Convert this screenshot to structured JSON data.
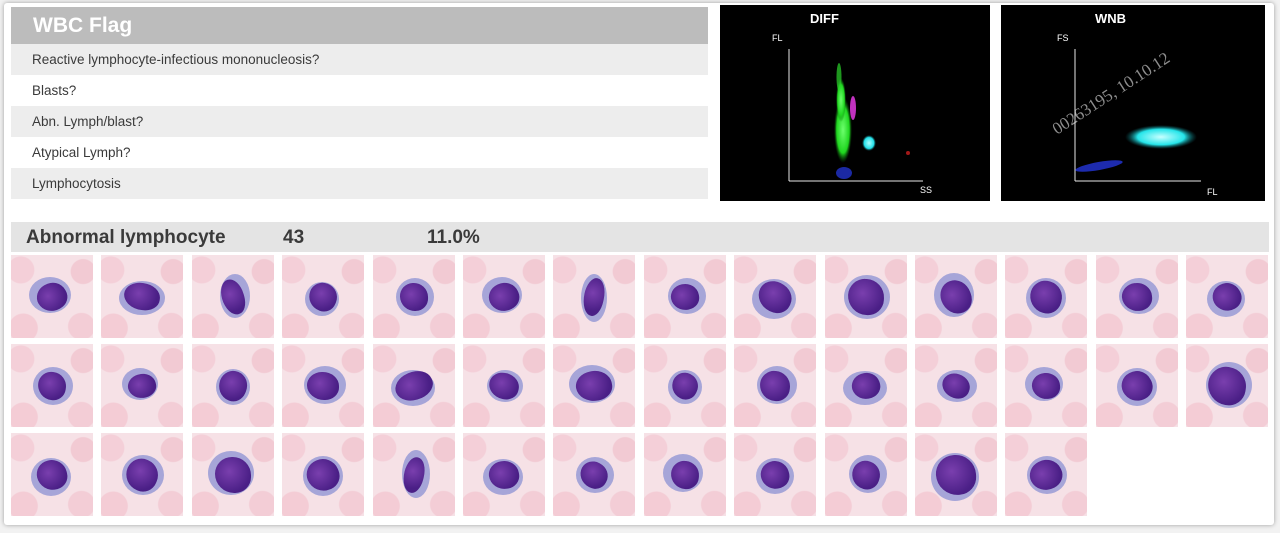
{
  "wbc_flag": {
    "title": "WBC Flag",
    "flags": [
      "Reactive lymphocyte-infectious mononucleosis?",
      "Blasts?",
      "Abn. Lymph/blast?",
      "Atypical Lymph?",
      "Lymphocytosis"
    ]
  },
  "scattergrams": {
    "diff": {
      "title": "DIFF",
      "y_label": "FL",
      "x_label": "SS"
    },
    "wnb": {
      "title": "WNB",
      "y_label": "FS",
      "x_label": "FL",
      "watermark": "00263195, 10.10.12"
    }
  },
  "abnormal": {
    "title": "Abnormal lymphocyte",
    "count": "43",
    "percent": "11.0%"
  },
  "cells": {
    "count": 40,
    "per_row": 14
  }
}
